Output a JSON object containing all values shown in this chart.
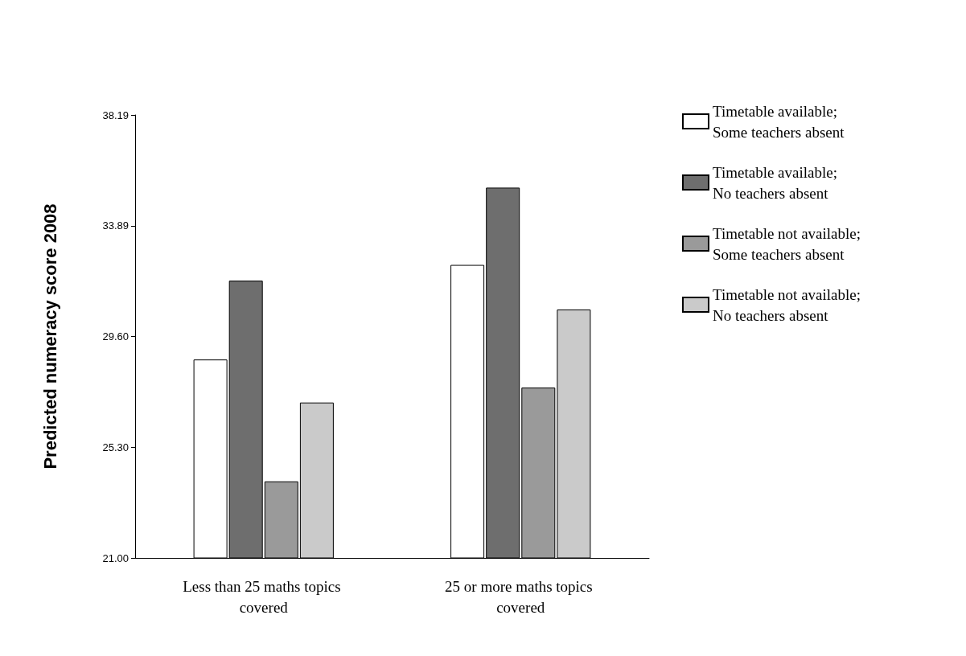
{
  "chart_data": {
    "type": "bar",
    "ylabel": "Predicted numeracy score 2008",
    "categories": [
      "Less than 25 maths topics covered",
      "25 or more maths topics covered"
    ],
    "series": [
      {
        "name": "Timetable available; Some teachers absent",
        "color": "#ffffff",
        "values": [
          28.7,
          32.37
        ]
      },
      {
        "name": "Timetable available; No teachers absent",
        "color": "#6e6e6e",
        "values": [
          31.76,
          35.37
        ]
      },
      {
        "name": "Timetable not available; Some teachers absent",
        "color": "#9a9a9a",
        "values": [
          23.97,
          27.61
        ]
      },
      {
        "name": "Timetable not available; No teachers absent",
        "color": "#cacaca",
        "values": [
          27.03,
          30.64
        ]
      }
    ],
    "ylim": [
      21,
      38.19
    ],
    "yticks": [
      {
        "value": 21,
        "label": "21.00"
      },
      {
        "value": 25.3,
        "label": "25.30"
      },
      {
        "value": 29.6,
        "label": "29.60"
      },
      {
        "value": 33.89,
        "label": "33.89"
      },
      {
        "value": 38.19,
        "label": "38.19"
      }
    ],
    "grid": false,
    "legend": "top right"
  }
}
